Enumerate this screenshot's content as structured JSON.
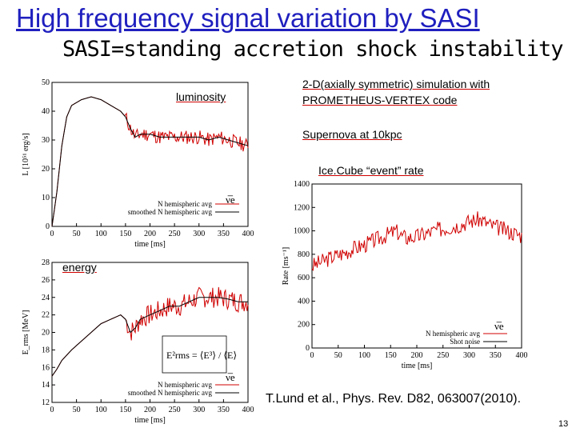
{
  "slide": {
    "title": "High frequency signal variation by SASI",
    "subtitle": "SASI=standing accretion shock instability",
    "labels": {
      "luminosity": "luminosity",
      "energy": "energy",
      "simulation_line1": "2-D(axially symmetric) simulation with",
      "simulation_line2": "PROMETHEUS-VERTEX code",
      "supernova": "Supernova at 10kpc",
      "icecube": "Ice.Cube “event” rate"
    },
    "citation": "T.Lund et al., Phys. Rev. D82, 063007(2010).",
    "page_number": "13"
  },
  "colors": {
    "title": "#1f1fbf",
    "raw": "#d00000",
    "smooth": "#000000"
  },
  "chart_data": [
    {
      "type": "line",
      "name": "luminosity",
      "ylabel": "L [10⁵¹ erg/s]",
      "xlabel": "time [ms]",
      "xlim": [
        0,
        400
      ],
      "ylim": [
        0,
        50
      ],
      "xticks": [
        "0",
        "50",
        "100",
        "150",
        "200",
        "250",
        "300",
        "350",
        "400"
      ],
      "yticks": [
        "0",
        "10",
        "20",
        "30",
        "40",
        "50"
      ],
      "legend": [
        "N hemispheric avg",
        "smoothed N hemispheric avg"
      ],
      "flavor": "ν̅e",
      "series": [
        {
          "name": "smoothed N hemispheric avg",
          "x": [
            0,
            10,
            20,
            30,
            40,
            60,
            80,
            100,
            120,
            140,
            150,
            160,
            170,
            180,
            200,
            220,
            240,
            260,
            280,
            300,
            320,
            340,
            360,
            380,
            400
          ],
          "values": [
            0,
            12,
            28,
            38,
            42,
            44,
            45,
            44,
            42,
            40,
            38,
            34,
            31,
            32,
            32,
            31,
            31,
            31,
            31,
            31,
            30,
            31,
            30,
            29,
            28
          ]
        }
      ],
      "noise_amplitude": 2.5,
      "noise_start": 150
    },
    {
      "type": "line",
      "name": "energy",
      "ylabel": "E_rms [MeV]",
      "xlabel": "time [ms]",
      "xlim": [
        0,
        400
      ],
      "ylim": [
        12,
        28
      ],
      "xticks": [
        "0",
        "50",
        "100",
        "150",
        "200",
        "250",
        "300",
        "350",
        "400"
      ],
      "yticks": [
        "12",
        "14",
        "16",
        "18",
        "20",
        "22",
        "24",
        "26",
        "28"
      ],
      "legend": [
        "N hemispheric avg",
        "smoothed N hemispheric avg"
      ],
      "flavor": "ν̅e",
      "formula": "E²rms = ⟨E³⟩ / ⟨E⟩",
      "series": [
        {
          "name": "smoothed N hemispheric avg",
          "x": [
            0,
            10,
            20,
            40,
            60,
            80,
            100,
            120,
            140,
            150,
            160,
            170,
            180,
            200,
            220,
            240,
            260,
            280,
            300,
            320,
            340,
            360,
            380,
            400
          ],
          "values": [
            15,
            15.8,
            16.8,
            18,
            19,
            20,
            21,
            21.5,
            22,
            21.5,
            20,
            20.5,
            21.5,
            22,
            22.5,
            23,
            23,
            23.5,
            24,
            24,
            24,
            23.8,
            23.5,
            23.5
          ]
        }
      ],
      "noise_amplitude": 1.2,
      "noise_start": 150
    },
    {
      "type": "line",
      "name": "icecube-rate",
      "ylabel": "Rate [ms⁻¹]",
      "xlabel": "time [ms]",
      "xlim": [
        0,
        400
      ],
      "ylim": [
        0,
        1400
      ],
      "xticks": [
        "0",
        "50",
        "100",
        "150",
        "200",
        "250",
        "300",
        "350",
        "400"
      ],
      "yticks": [
        "0",
        "200",
        "400",
        "600",
        "800",
        "1000",
        "1200",
        "1400"
      ],
      "legend": [
        "N hemispheric avg",
        "Shot noise"
      ],
      "flavor": "ν̅e",
      "series": [
        {
          "name": "N hemispheric avg",
          "x": [
            0,
            10,
            20,
            30,
            40,
            60,
            80,
            100,
            120,
            140,
            150,
            160,
            170,
            180,
            200,
            220,
            240,
            260,
            280,
            300,
            320,
            340,
            360,
            380,
            400
          ],
          "values": [
            700,
            720,
            740,
            760,
            780,
            810,
            850,
            880,
            920,
            960,
            980,
            1000,
            960,
            940,
            950,
            980,
            1010,
            1030,
            1050,
            1080,
            1100,
            1050,
            1020,
            990,
            960
          ]
        }
      ],
      "noise_amplitude": 70,
      "noise_start": 0
    }
  ]
}
